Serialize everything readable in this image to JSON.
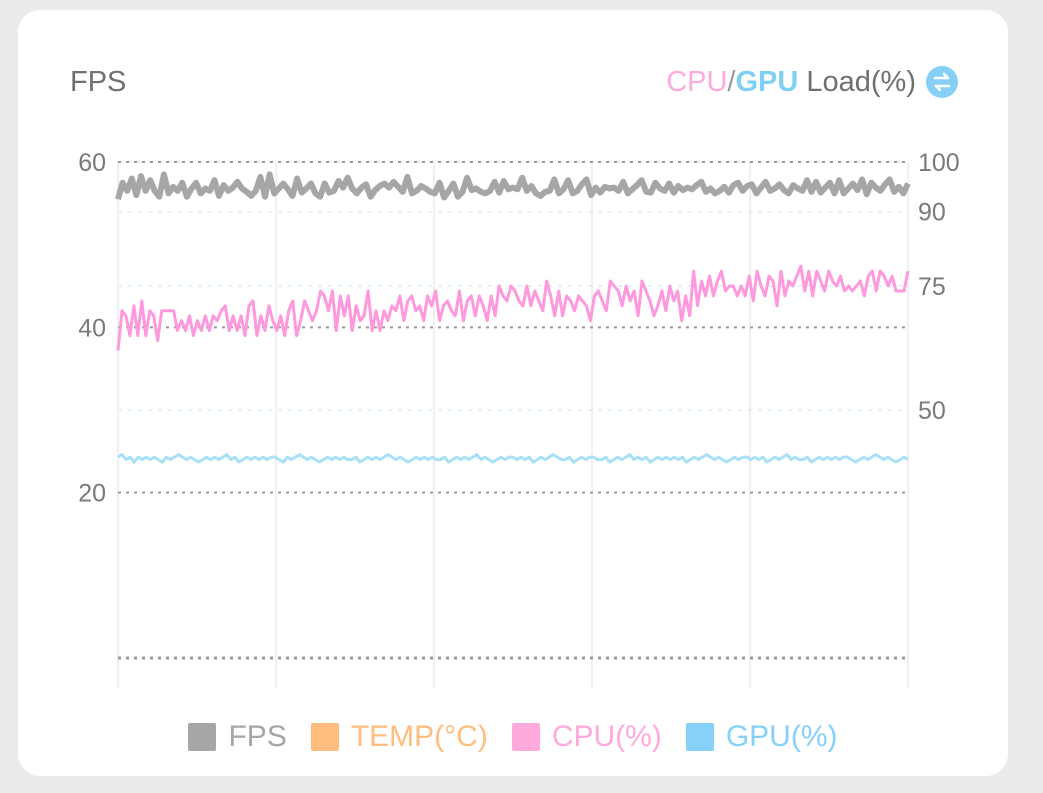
{
  "header": {
    "left_title": "FPS",
    "right_title_cpu": "CPU",
    "right_title_slash": "/",
    "right_title_gpu": "GPU",
    "right_title_rest": " Load(%)",
    "swap_icon": "swap-vertical-icon"
  },
  "colors": {
    "fps": "#a6a6a6",
    "temp": "#ffbd80",
    "cpu": "#ffaadd",
    "cpu_line": "#ff99dd",
    "gpu": "#85d1f8",
    "gpu_line": "#a8e0f8"
  },
  "chart_data": {
    "type": "line",
    "title": "",
    "left_axis": {
      "label": "FPS",
      "ylim": [
        0,
        60
      ],
      "ticks": [
        "60",
        "40",
        "20"
      ],
      "tick_values": [
        60,
        40,
        20
      ]
    },
    "right_axis": {
      "label": "CPU/GPU Load(%)",
      "ylim": [
        0,
        100
      ],
      "ticks": [
        "100",
        "90",
        "75",
        "50"
      ],
      "tick_values": [
        100,
        90,
        75,
        50
      ]
    },
    "grid": true,
    "legend_position": "bottom",
    "legend": [
      "FPS",
      "TEMP(°C)",
      "CPU(%)",
      "GPU(%)"
    ],
    "series": [
      {
        "name": "FPS",
        "axis": "left",
        "values": [
          55.5,
          57.5,
          56.5,
          58,
          56,
          58.3,
          56.5,
          57.8,
          56.5,
          55.8,
          58.5,
          56.2,
          57,
          56.5,
          57.5,
          55.8,
          56.8,
          57.5,
          56.2,
          56.8,
          56.5,
          57.8,
          55.9,
          57.2,
          56.5,
          56.9,
          57.6,
          56.8,
          56.4,
          55.9,
          56.5,
          58.2,
          55.8,
          58.5,
          56.2,
          56.8,
          57.4,
          56.7,
          55.9,
          58,
          56.3,
          56.8,
          57.4,
          56.2,
          55.8,
          57.4,
          56.3,
          56.5,
          57.7,
          56.9,
          58.1,
          56.8,
          56.2,
          56.9,
          57.3,
          55.8,
          56.6,
          57.1,
          57.4,
          56.9,
          57.6,
          57,
          56.4,
          58.2,
          56.2,
          56.5,
          57.1,
          56.8,
          56.4,
          56.2,
          57.5,
          55.7,
          56.5,
          57.4,
          55.8,
          56.4,
          58.1,
          56.6,
          56.8,
          56.4,
          56.2,
          56.5,
          57.6,
          56.3,
          57.7,
          56.7,
          56.9,
          56.7,
          58.1,
          56.5,
          57.1,
          56.2,
          55.9,
          56.4,
          56.5,
          57.9,
          56.2,
          56.7,
          57.8,
          56.2,
          56.5,
          57.3,
          57.9,
          56,
          56.9,
          56.3,
          57,
          56.8,
          56.9,
          56.5,
          57.6,
          56.2,
          56.7,
          57.2,
          57.8,
          56.4,
          56.3,
          57.5,
          56.8,
          56.5,
          57.4,
          56.3,
          57.1,
          56.6,
          56.9,
          56.7,
          57.2,
          57.6,
          56.4,
          56.8,
          56.2,
          56.5,
          57,
          56.3,
          57.2,
          57.5,
          56.5,
          57.1,
          57.3,
          56.2,
          56.9,
          57.6,
          56.5,
          56.8,
          57.3,
          56.6,
          56.2,
          57.2,
          56.8,
          56.5,
          57.8,
          56.4,
          57.6,
          56.3,
          56.9,
          57.5,
          56.2,
          57.8,
          56.2,
          56.8,
          57.4,
          56.6,
          57.9,
          56.1,
          57.5,
          56.9,
          56.5,
          57.3,
          57.9,
          56.4,
          57,
          56.2,
          57.4
        ],
        "note": ""
      },
      {
        "name": "CPU(%)",
        "axis": "right",
        "values": [
          62,
          70,
          69,
          65,
          71,
          65,
          72,
          65,
          70,
          69,
          64,
          70,
          70,
          70,
          70,
          66,
          68,
          66,
          69,
          65,
          68,
          66,
          69,
          66,
          69,
          68,
          70,
          71,
          66,
          69,
          66,
          69,
          65,
          71,
          72,
          65,
          69,
          66,
          71,
          68,
          66,
          69,
          65,
          70,
          72,
          65,
          68,
          72,
          70,
          68,
          70,
          74,
          73,
          70,
          74,
          66,
          73,
          69,
          73,
          66,
          71,
          68,
          69,
          74,
          66,
          70,
          66,
          70,
          68,
          71,
          70,
          73,
          68,
          72,
          73,
          70,
          71,
          68,
          73,
          71,
          74,
          68,
          71,
          72,
          70,
          69,
          74,
          68,
          72,
          73,
          69,
          73,
          71,
          68,
          73,
          69,
          75,
          73,
          72,
          75,
          74,
          72,
          71,
          75,
          71,
          74,
          72,
          70,
          76,
          73,
          69,
          74,
          69,
          73,
          72,
          70,
          73,
          72,
          71,
          68,
          73,
          74,
          72,
          70,
          76,
          75,
          74,
          71,
          75,
          72,
          74,
          69,
          76,
          74,
          72,
          69,
          71,
          74,
          70,
          75,
          72,
          74,
          68,
          73,
          69,
          78,
          71,
          76,
          73,
          77,
          73,
          76,
          78,
          74,
          75,
          75,
          73,
          75,
          73,
          77,
          72,
          78,
          75,
          73,
          77,
          76,
          71,
          78,
          73,
          76,
          75,
          77,
          79,
          74,
          78,
          73,
          78,
          76,
          74,
          78,
          76,
          75,
          77,
          74,
          75,
          74,
          75,
          76,
          73,
          77,
          78,
          74,
          78,
          77,
          75,
          77,
          74,
          74,
          74,
          78
        ],
        "note": ""
      },
      {
        "name": "GPU(%)",
        "axis": "right",
        "values": [
          40.5,
          41,
          40,
          40.5,
          39.5,
          40.5,
          40,
          40.5,
          40,
          40.5,
          40,
          39.5,
          40.5,
          40,
          40.5,
          41,
          40.5,
          40,
          40.5,
          40,
          39.5,
          40,
          40.5,
          40,
          40.5,
          40,
          40.5,
          41,
          40,
          40.5,
          39.5,
          40,
          40.5,
          40,
          40.5,
          40,
          40.5,
          40,
          40.5,
          40.5,
          40,
          39.5,
          40.5,
          40,
          40.5,
          41,
          40.5,
          40,
          40.5,
          40,
          39.5,
          40,
          40.5,
          40,
          40.5,
          40,
          40.5,
          40,
          40,
          40.5,
          39.5,
          40,
          40.5,
          40,
          40.5,
          40,
          40.5,
          41,
          40.5,
          40,
          40.5,
          40,
          39.5,
          40,
          40.5,
          40,
          40.5,
          40,
          40.5,
          40,
          40,
          40.5,
          39.5,
          40,
          40.5,
          40,
          40.5,
          40,
          40.5,
          41,
          40,
          40.5,
          40,
          39.5,
          40,
          40.5,
          40,
          40.5,
          40.5,
          40,
          40.5,
          40,
          40.5,
          39.5,
          40,
          40.5,
          40,
          40.5,
          41,
          40.5,
          40,
          40,
          40.5,
          39.5,
          40,
          40.5,
          40,
          40.5,
          40.5,
          40,
          40,
          40.5,
          39.5,
          40,
          40.5,
          40,
          40.5,
          41,
          40,
          40.5,
          40,
          40.5,
          39.5,
          40,
          40.5,
          40,
          40.5,
          40,
          40.5,
          40,
          40.5,
          39.5,
          40,
          40.5,
          40,
          40.5,
          41,
          40.5,
          40,
          40.5,
          40,
          39.5,
          40,
          40.5,
          40,
          40.5,
          40.5,
          40,
          40.5,
          40,
          40.5,
          39.5,
          40,
          40.5,
          40,
          40.5,
          41,
          40,
          40.5,
          40,
          40,
          40.5,
          39.5,
          40,
          40.5,
          40,
          40.5,
          40,
          40.5,
          40,
          40.5,
          40.5,
          40,
          39.5,
          40,
          40.5,
          40,
          40.5,
          41,
          40.5,
          40,
          40.5,
          40,
          39.5,
          40,
          40.5,
          40
        ],
        "note": ""
      }
    ]
  }
}
